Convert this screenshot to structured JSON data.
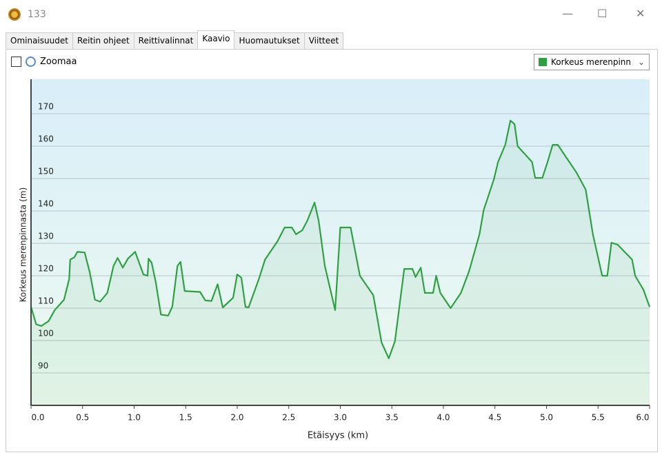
{
  "window": {
    "title": "133"
  },
  "tabs": [
    "Ominaisuudet",
    "Reitin ohjeet",
    "Reittivalinnat",
    "Kaavio",
    "Huomautukset",
    "Viitteet"
  ],
  "toolbar": {
    "zoom_label": "Zoomaa"
  },
  "chart_data": {
    "type": "line",
    "x_label": "Etäisyys  (km)",
    "y_label": "Korkeus merenpinnasta (m)",
    "x": [
      0,
      0.05,
      0.1,
      0.17,
      0.23,
      0.32,
      0.37,
      0.38,
      0.42,
      0.45,
      0.52,
      0.57,
      0.62,
      0.67,
      0.74,
      0.8,
      0.84,
      0.89,
      0.94,
      1.01,
      1.06,
      1.09,
      1.13,
      1.14,
      1.17,
      1.21,
      1.26,
      1.33,
      1.37,
      1.42,
      1.45,
      1.49,
      1.64,
      1.69,
      1.75,
      1.81,
      1.86,
      1.96,
      2.0,
      2.04,
      2.08,
      2.11,
      2.21,
      2.27,
      2.39,
      2.46,
      2.53,
      2.57,
      2.63,
      2.68,
      2.75,
      2.79,
      2.85,
      2.95,
      3.0,
      3.1,
      3.19,
      3.32,
      3.4,
      3.47,
      3.53,
      3.62,
      3.7,
      3.73,
      3.78,
      3.82,
      3.9,
      3.93,
      3.97,
      4.07,
      4.17,
      4.25,
      4.35,
      4.39,
      4.49,
      4.53,
      4.6,
      4.65,
      4.69,
      4.72,
      4.86,
      4.89,
      4.96,
      5.01,
      5.06,
      5.11,
      5.19,
      5.29,
      5.38,
      5.45,
      5.54,
      5.59,
      5.63,
      5.69,
      5.83,
      5.86,
      5.94,
      6.0
    ],
    "series": [
      {
        "name": "Korkeus merenpinn",
        "color": "#2ea043",
        "values": [
          110.4,
          105,
          104.5,
          106,
          109.4,
          112.6,
          119,
          125,
          125.7,
          127.4,
          127.2,
          121,
          112.6,
          112,
          114.7,
          123,
          125.5,
          122.5,
          125.3,
          127.4,
          123,
          120.4,
          120,
          125.3,
          124,
          118,
          108,
          107.7,
          110.4,
          123,
          124.3,
          115.3,
          115,
          112.4,
          112.2,
          117.4,
          110.2,
          113.2,
          120.4,
          119.4,
          110.4,
          110.2,
          119,
          125,
          130.6,
          134.9,
          134.9,
          132.8,
          134,
          137,
          142.6,
          137,
          123,
          109.4,
          134.9,
          134.9,
          120,
          114,
          99.4,
          94.5,
          99.8,
          122.1,
          122.1,
          119.6,
          122.5,
          114.7,
          114.7,
          120,
          114.7,
          110,
          114.7,
          121.5,
          132.8,
          140.2,
          149.8,
          155.1,
          160.4,
          167.9,
          166.8,
          160,
          155.1,
          150.2,
          150.2,
          155.1,
          160.4,
          160.4,
          156.6,
          151.9,
          146.6,
          132.8,
          120,
          120,
          130.2,
          129.6,
          125,
          120,
          115.7,
          110.4
        ]
      }
    ],
    "xlim": [
      0,
      6
    ],
    "ylim": [
      80,
      180
    ],
    "xticks": [
      {
        "value": 0,
        "label": "0.0"
      },
      {
        "value": 0.5,
        "label": "0.5"
      },
      {
        "value": 1,
        "label": "1.0"
      },
      {
        "value": 1.5,
        "label": "1.5"
      },
      {
        "value": 2,
        "label": "2.0"
      },
      {
        "value": 2.5,
        "label": "2.5"
      },
      {
        "value": 3,
        "label": "3.0"
      },
      {
        "value": 3.5,
        "label": "3.5"
      },
      {
        "value": 4,
        "label": "4.0"
      },
      {
        "value": 4.5,
        "label": "4.5"
      },
      {
        "value": 5,
        "label": "5.0"
      },
      {
        "value": 5.5,
        "label": "5.5"
      },
      {
        "value": 6,
        "label": "6.0"
      }
    ],
    "yticks": [
      90,
      100,
      110,
      120,
      130,
      140,
      150,
      160,
      170
    ],
    "grid": true
  }
}
